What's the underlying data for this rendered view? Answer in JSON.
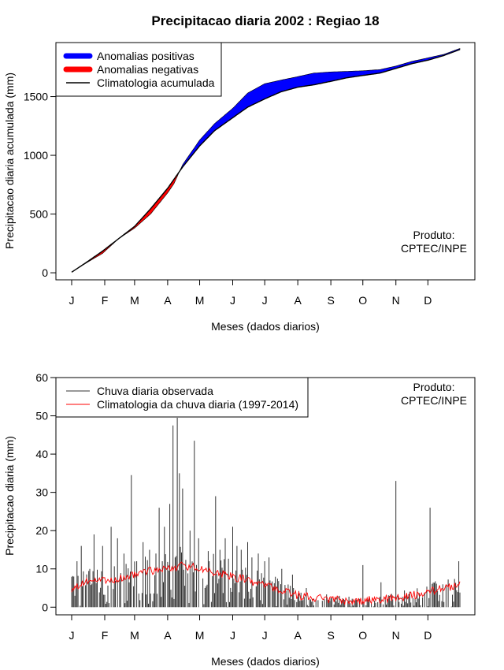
{
  "figure": {
    "title": "Precipitacao diaria 2002 : Regiao 18",
    "product_line1": "Produto:",
    "product_line2": "CPTEC/INPE"
  },
  "chart_data": [
    {
      "type": "area",
      "panel": "top",
      "xlabel": "Meses (dados diarios)",
      "ylabel": "Precipitacao diaria acumulada (mm)",
      "xlim": [
        1,
        365
      ],
      "ylim": [
        -60,
        1960
      ],
      "x_ticks": [
        {
          "label": "J",
          "day": 1
        },
        {
          "label": "F",
          "day": 32
        },
        {
          "label": "M",
          "day": 60
        },
        {
          "label": "A",
          "day": 91
        },
        {
          "label": "M",
          "day": 121
        },
        {
          "label": "J",
          "day": 152
        },
        {
          "label": "J",
          "day": 182
        },
        {
          "label": "A",
          "day": 213
        },
        {
          "label": "S",
          "day": 244
        },
        {
          "label": "O",
          "day": 274
        },
        {
          "label": "N",
          "day": 305
        },
        {
          "label": "D",
          "day": 335
        }
      ],
      "y_ticks": [
        0,
        500,
        1000,
        1500
      ],
      "legend": [
        {
          "label": "Anomalias positivas",
          "color": "#0000ff"
        },
        {
          "label": "Anomalias negativas",
          "color": "#ff0000"
        },
        {
          "label": "Climatologia acumulada",
          "color": "#000000"
        }
      ],
      "climatology_cumulative": {
        "days": [
          1,
          15,
          30,
          45,
          60,
          75,
          91,
          105,
          121,
          135,
          152,
          166,
          182,
          197,
          213,
          228,
          244,
          259,
          274,
          290,
          305,
          320,
          335,
          350,
          365
        ],
        "values": [
          5,
          90,
          185,
          290,
          395,
          545,
          720,
          900,
          1080,
          1210,
          1320,
          1410,
          1480,
          1540,
          1580,
          1600,
          1630,
          1660,
          1680,
          1700,
          1740,
          1780,
          1810,
          1850,
          1900
        ]
      },
      "observed_cumulative": {
        "days": [
          1,
          15,
          30,
          45,
          60,
          75,
          91,
          97,
          105,
          121,
          135,
          152,
          166,
          182,
          197,
          213,
          228,
          244,
          259,
          274,
          290,
          305,
          320,
          335,
          350,
          365
        ],
        "values": [
          5,
          85,
          165,
          290,
          380,
          500,
          680,
          760,
          920,
          1130,
          1270,
          1400,
          1530,
          1610,
          1640,
          1670,
          1700,
          1710,
          1715,
          1720,
          1730,
          1760,
          1800,
          1830,
          1860,
          1910
        ]
      }
    },
    {
      "type": "bar",
      "panel": "bottom",
      "xlabel": "Meses (dados diarios)",
      "ylabel": "Precipitacao diaria (mm)",
      "xlim": [
        1,
        365
      ],
      "ylim": [
        -2,
        60
      ],
      "x_ticks": [
        {
          "label": "J",
          "day": 1
        },
        {
          "label": "F",
          "day": 32
        },
        {
          "label": "M",
          "day": 60
        },
        {
          "label": "A",
          "day": 91
        },
        {
          "label": "M",
          "day": 121
        },
        {
          "label": "J",
          "day": 152
        },
        {
          "label": "J",
          "day": 182
        },
        {
          "label": "A",
          "day": 213
        },
        {
          "label": "S",
          "day": 244
        },
        {
          "label": "O",
          "day": 274
        },
        {
          "label": "N",
          "day": 305
        },
        {
          "label": "D",
          "day": 335
        }
      ],
      "y_ticks": [
        0,
        10,
        20,
        30,
        40,
        50,
        60
      ],
      "legend": [
        {
          "label": "Chuva diaria observada",
          "color": "#333333"
        },
        {
          "label": "Climatologia da chuva diaria (1997-2014)",
          "color": "#ff0000"
        }
      ],
      "climatology_daily": {
        "days": [
          1,
          15,
          30,
          45,
          60,
          75,
          91,
          105,
          121,
          135,
          152,
          166,
          182,
          197,
          213,
          228,
          244,
          259,
          274,
          290,
          305,
          320,
          335,
          350,
          365
        ],
        "values": [
          5,
          6.5,
          7,
          7.5,
          8.5,
          9.5,
          10,
          11,
          10,
          9,
          8,
          7,
          6,
          4.5,
          3,
          2.5,
          2,
          1.8,
          1.7,
          2,
          2.5,
          3,
          4,
          5,
          6
        ]
      },
      "observed_peaks": {
        "days": [
          3,
          6,
          10,
          18,
          22,
          30,
          38,
          44,
          50,
          57,
          62,
          68,
          74,
          80,
          83,
          86,
          88,
          93,
          96,
          98,
          100,
          102,
          105,
          112,
          116,
          120,
          130,
          136,
          140,
          145,
          152,
          156,
          160,
          166,
          170,
          176,
          182,
          186,
          198,
          208,
          221,
          241,
          274,
          291,
          305,
          337,
          364
        ],
        "values": [
          8,
          12,
          16,
          10,
          19,
          16,
          21,
          18,
          14,
          34.5,
          12,
          17,
          15,
          14,
          26,
          12,
          21,
          27,
          47.5,
          13,
          49.5,
          35,
          31,
          20,
          43.5,
          18,
          12,
          29,
          15,
          18,
          21,
          16,
          15,
          17,
          13,
          14,
          12,
          13,
          10,
          8.5,
          5,
          2,
          11,
          6.5,
          33,
          26,
          12
        ]
      }
    }
  ]
}
